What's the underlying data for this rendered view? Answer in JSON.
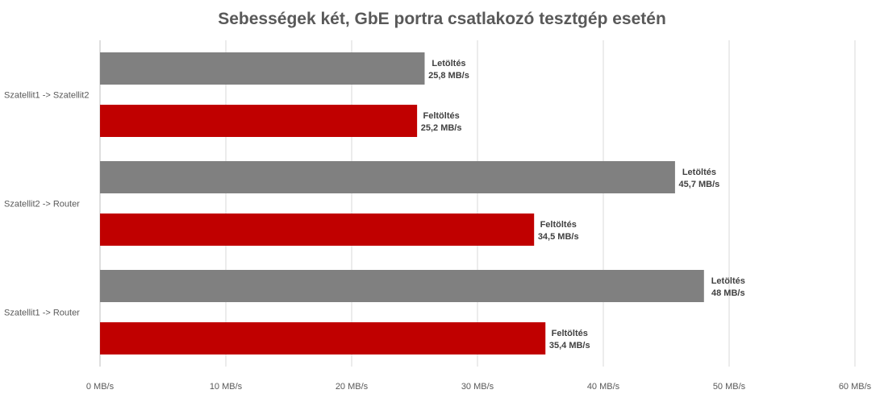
{
  "chart_data": {
    "type": "bar",
    "orientation": "horizontal",
    "title": "Sebességek két, GbE portra csatlakozó tesztgép esetén",
    "xlabel": "",
    "ylabel": "",
    "xlim": [
      0,
      60
    ],
    "x_ticks": [
      "0 MB/s",
      "10 MB/s",
      "20 MB/s",
      "30 MB/s",
      "40 MB/s",
      "50 MB/s",
      "60 MB/s"
    ],
    "grid": true,
    "categories": [
      "Szatellit1 -> Szatellit2",
      "Szatellit2 -> Router",
      "Szatellit1 -> Router"
    ],
    "series": [
      {
        "name": "Letöltés",
        "color": "#808080",
        "values": [
          25.8,
          45.7,
          48
        ],
        "labels": [
          "Letöltés\n25,8 MB/s",
          "Letöltés\n45,7 MB/s",
          "Letöltés\n48 MB/s"
        ]
      },
      {
        "name": "Feltöltés",
        "color": "#C00000",
        "values": [
          25.2,
          34.5,
          35.4
        ],
        "labels": [
          "Feltöltés\n25,2 MB/s",
          "Feltöltés\n34,5 MB/s",
          "Feltöltés\n35,4 MB/s"
        ]
      }
    ]
  }
}
